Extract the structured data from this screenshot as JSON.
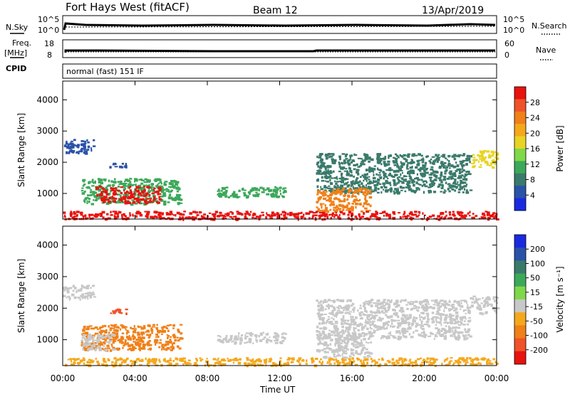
{
  "header": {
    "radar": "Fort Hays West (fitACF)",
    "beam": "Beam 12",
    "date": "13/Apr/2019"
  },
  "info_panel": {
    "left_top_label": "N.Sky",
    "left_top_ticks": [
      "10^5",
      "10^0"
    ],
    "right_top_ticks": [
      "10^5",
      "10^0"
    ],
    "right_top_label": "N.Search",
    "left_mid_label_1": "Freq.",
    "left_mid_label_2": "[MHz]",
    "left_mid_ticks": [
      "18",
      "8"
    ],
    "right_mid_ticks": [
      "60",
      "0"
    ],
    "right_mid_label": "Nave",
    "cpid_label": "CPID",
    "cpid_text": "normal (fast) 151 IF"
  },
  "chart_data": [
    {
      "type": "heatmap",
      "title": "",
      "xlabel": "Time UT",
      "ylabel": "Slant Range [km]",
      "x_ticks": [
        "00:00",
        "04:00",
        "08:00",
        "12:00",
        "16:00",
        "20:00",
        "00:00"
      ],
      "x_range_hours": [
        0,
        24
      ],
      "y_ticks": [
        1000,
        2000,
        3000,
        4000
      ],
      "y_range": [
        180,
        4600
      ],
      "colorbar": {
        "label": "Power [dB]",
        "ticks": [
          "28",
          "24",
          "20",
          "16",
          "12",
          "8",
          "4"
        ],
        "colors": [
          "#e8120e",
          "#f0522a",
          "#f08018",
          "#f5a81c",
          "#e8d424",
          "#7fd84a",
          "#3da85a",
          "#3a7a6a",
          "#2a52a8",
          "#1a2ae0"
        ]
      },
      "regions": [
        {
          "t0": 0.0,
          "t1": 1.7,
          "r0": 2300,
          "r1": 2750,
          "color": "#2a52a8"
        },
        {
          "t0": 1.0,
          "t1": 6.5,
          "r0": 680,
          "r1": 1500,
          "color": "#3da85a"
        },
        {
          "t0": 1.8,
          "t1": 5.4,
          "r0": 720,
          "r1": 1250,
          "color": "#e8120e"
        },
        {
          "t0": 2.5,
          "t1": 3.5,
          "r0": 1850,
          "r1": 2000,
          "color": "#2a52a8"
        },
        {
          "t0": 8.5,
          "t1": 12.3,
          "r0": 900,
          "r1": 1250,
          "color": "#3da85a"
        },
        {
          "t0": 14.0,
          "t1": 22.5,
          "r0": 1050,
          "r1": 2300,
          "color": "#3a7a6a"
        },
        {
          "t0": 14.0,
          "t1": 17.0,
          "r0": 450,
          "r1": 1200,
          "color": "#f08018"
        },
        {
          "t0": 22.5,
          "t1": 24.0,
          "r0": 1850,
          "r1": 2400,
          "color": "#e8d424"
        },
        {
          "t0": 0.0,
          "t1": 24.0,
          "r0": 200,
          "r1": 450,
          "color": "#e8120e"
        }
      ]
    },
    {
      "type": "heatmap",
      "title": "",
      "xlabel": "Time UT",
      "ylabel": "Slant Range [km]",
      "x_ticks": [
        "00:00",
        "04:00",
        "08:00",
        "12:00",
        "16:00",
        "20:00",
        "00:00"
      ],
      "x_range_hours": [
        0,
        24
      ],
      "y_ticks": [
        1000,
        2000,
        3000,
        4000
      ],
      "y_range": [
        180,
        4600
      ],
      "colorbar": {
        "label": "Velocity [m s⁻¹]",
        "ticks": [
          "200",
          "100",
          "50",
          "15",
          "-15",
          "-50",
          "-100",
          "-200"
        ],
        "colors": [
          "#1a2ae0",
          "#2a52a8",
          "#3a7a6a",
          "#3da85a",
          "#7fd84a",
          "#c8c8c8",
          "#f5a81c",
          "#f08018",
          "#f0522a",
          "#e8120e"
        ]
      },
      "regions": [
        {
          "t0": 0.0,
          "t1": 1.7,
          "r0": 2300,
          "r1": 2750,
          "color": "#c8c8c8"
        },
        {
          "t0": 1.0,
          "t1": 6.5,
          "r0": 680,
          "r1": 1500,
          "color": "#f08018"
        },
        {
          "t0": 1.0,
          "t1": 2.8,
          "r0": 700,
          "r1": 1200,
          "color": "#c8c8c8"
        },
        {
          "t0": 2.5,
          "t1": 3.5,
          "r0": 1850,
          "r1": 2000,
          "color": "#f0522a"
        },
        {
          "t0": 8.5,
          "t1": 12.3,
          "r0": 900,
          "r1": 1250,
          "color": "#c8c8c8"
        },
        {
          "t0": 14.0,
          "t1": 22.5,
          "r0": 1050,
          "r1": 2300,
          "color": "#c8c8c8"
        },
        {
          "t0": 14.0,
          "t1": 17.0,
          "r0": 450,
          "r1": 1200,
          "color": "#c8c8c8"
        },
        {
          "t0": 22.5,
          "t1": 24.0,
          "r0": 1850,
          "r1": 2400,
          "color": "#c8c8c8"
        },
        {
          "t0": 0.0,
          "t1": 24.0,
          "r0": 200,
          "r1": 450,
          "color": "#f5a81c"
        }
      ]
    }
  ]
}
